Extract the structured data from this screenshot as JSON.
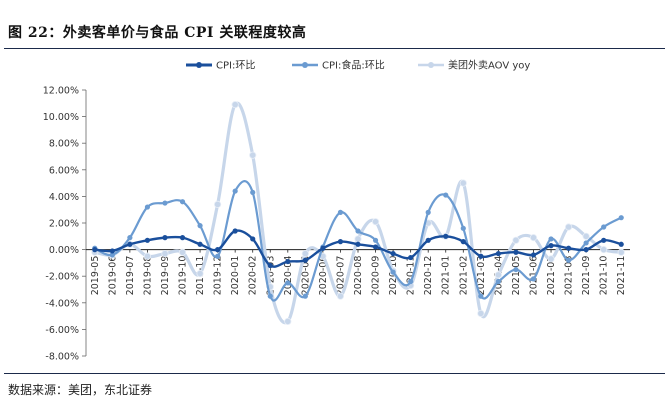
{
  "figure_title": "图 22：外卖客单价与食品 CPI 关联程度较高",
  "source": "数据来源：美团，东北证券",
  "chart_data": {
    "type": "line",
    "x": [
      "2019-05",
      "2019-06",
      "2019-07",
      "2019-08",
      "2019-09",
      "2019-10",
      "2019-11",
      "2019-12",
      "2020-01",
      "2020-02",
      "2020-03",
      "2020-04",
      "2020-05",
      "2020-06",
      "2020-07",
      "2020-08",
      "2020-09",
      "2020-10",
      "2020-11",
      "2020-12",
      "2021-01",
      "2021-02",
      "2021-03",
      "2021-04",
      "2021-05",
      "2021-06",
      "2021-07",
      "2021-08",
      "2021-09",
      "2021-10",
      "2021-11"
    ],
    "series": [
      {
        "name": "CPI:环比",
        "color": "#1a4f9c",
        "values": [
          0.0,
          -0.1,
          0.4,
          0.7,
          0.9,
          0.9,
          0.4,
          0.0,
          1.4,
          0.8,
          -1.2,
          -0.9,
          -0.8,
          0.1,
          0.6,
          0.4,
          0.2,
          -0.3,
          -0.6,
          0.7,
          1.0,
          0.6,
          -0.5,
          -0.3,
          -0.2,
          -0.4,
          0.3,
          0.1,
          0.0,
          0.7,
          0.4
        ]
      },
      {
        "name": "CPI:食品:环比",
        "color": "#6b9bd1",
        "values": [
          0.1,
          -0.4,
          0.9,
          3.2,
          3.5,
          3.6,
          1.8,
          -0.5,
          4.4,
          4.3,
          -3.5,
          -2.5,
          -3.5,
          0.2,
          2.8,
          1.4,
          0.7,
          -1.7,
          -2.4,
          2.8,
          4.1,
          1.6,
          -3.5,
          -2.4,
          -1.5,
          -2.2,
          0.8,
          -0.8,
          0.5,
          1.7,
          2.4
        ]
      },
      {
        "name": "美团外卖AOV yoy",
        "color": "#c7d6ea",
        "values": [
          -0.2,
          -0.4,
          0.4,
          -0.5,
          -0.3,
          -0.2,
          -1.8,
          3.4,
          10.9,
          7.1,
          -2.8,
          -5.4,
          -0.3,
          -0.5,
          -3.5,
          0.8,
          2.1,
          -1.6,
          -2.7,
          2.0,
          1.0,
          5.0,
          -4.8,
          -1.9,
          0.7,
          0.9,
          -0.7,
          1.7,
          1.0,
          0.0,
          -0.2
        ]
      }
    ],
    "ylim": [
      -8,
      12
    ],
    "yticks": [
      "-8.00%",
      "-6.00%",
      "-4.00%",
      "-2.00%",
      "0.00%",
      "2.00%",
      "4.00%",
      "6.00%",
      "8.00%",
      "10.00%",
      "12.00%"
    ],
    "legend_position": "top-center",
    "grid": false
  }
}
